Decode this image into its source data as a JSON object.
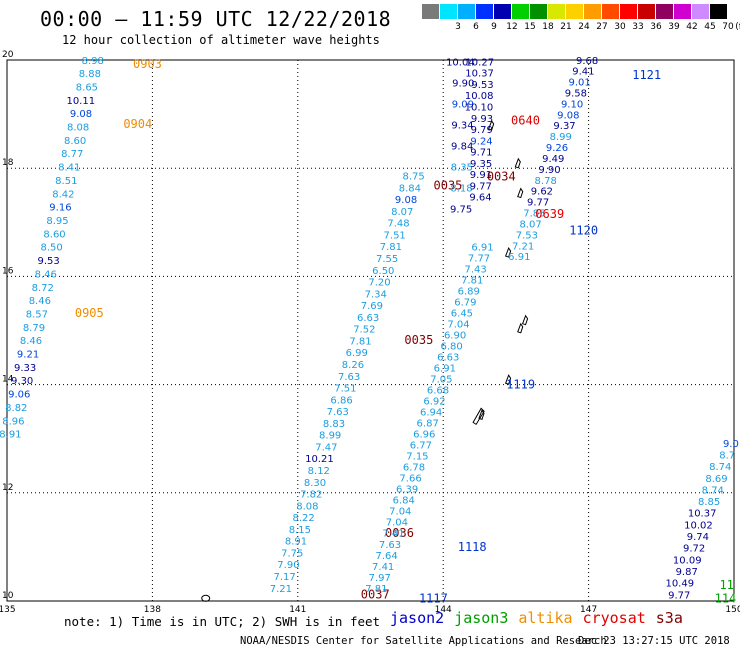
{
  "header": {
    "title": "00:00 – 11:59 UTC 12/22/2018",
    "subtitle": "12 hour collection of altimeter wave heights"
  },
  "legend": {
    "unit": "(ft)",
    "bins": [
      {
        "label": "",
        "color": "#7a7a7a"
      },
      {
        "label": "3",
        "color": "#00e5ff"
      },
      {
        "label": "6",
        "color": "#00b0ff"
      },
      {
        "label": "9",
        "color": "#0030ff"
      },
      {
        "label": "12",
        "color": "#0000b0"
      },
      {
        "label": "15",
        "color": "#00d000"
      },
      {
        "label": "18",
        "color": "#009000"
      },
      {
        "label": "21",
        "color": "#d8e800"
      },
      {
        "label": "24",
        "color": "#ffd000"
      },
      {
        "label": "27",
        "color": "#ff9c00"
      },
      {
        "label": "30",
        "color": "#ff4a00"
      },
      {
        "label": "33",
        "color": "#ff0000"
      },
      {
        "label": "36",
        "color": "#c80000"
      },
      {
        "label": "39",
        "color": "#900060"
      },
      {
        "label": "42",
        "color": "#d000d0"
      },
      {
        "label": "45",
        "color": "#d08aff"
      },
      {
        "label": "70",
        "color": "#000000"
      }
    ]
  },
  "axes": {
    "x_ticks": [
      {
        "lon": 135,
        "label": "135"
      },
      {
        "lon": 138,
        "label": "138"
      },
      {
        "lon": 141,
        "label": "141"
      },
      {
        "lon": 144,
        "label": "144"
      },
      {
        "lon": 147,
        "label": "147"
      },
      {
        "lon": 150,
        "label": "150"
      }
    ],
    "y_ticks": [
      {
        "lat": 10,
        "label": "10"
      },
      {
        "lat": 12,
        "label": "12"
      },
      {
        "lat": 14,
        "label": "14"
      },
      {
        "lat": 16,
        "label": "16"
      },
      {
        "lat": 18,
        "label": "18"
      },
      {
        "lat": 20,
        "label": "20"
      }
    ]
  },
  "colors": {
    "c_light": "#1a9ee0",
    "c_mid": "#0044dd",
    "c_dark": "#000090"
  },
  "tracks": [
    {
      "name": "track-0903",
      "time": "0903",
      "time_color": "#f08c00",
      "time_pos": {
        "lon": 137.6,
        "lat": 19.93
      },
      "start": {
        "lon": 137.0,
        "lat": 19.93
      },
      "end": {
        "lon": 135.3,
        "lat": 13.02
      },
      "values": [
        "8.98",
        "8.88",
        "8.65",
        "10.11",
        "9.08",
        "8.08",
        "8.60",
        "8.77",
        "8.41",
        "8.51",
        "8.42",
        "9.16",
        "8.95",
        "8.60",
        "8.50",
        "9.53",
        "8.46",
        "8.72",
        "8.46",
        "8.57",
        "8.79",
        "8.46",
        "9.21",
        "9.33",
        "9.30",
        "9.06",
        "8.82",
        "8.96",
        "8.91"
      ],
      "extra_times": [
        {
          "time": "0904",
          "lon": 137.4,
          "lat": 18.82,
          "color": "#f08c00"
        },
        {
          "time": "0905",
          "lon": 136.4,
          "lat": 15.32,
          "color": "#f08c00"
        }
      ]
    },
    {
      "name": "track-0035",
      "time": "0035",
      "time_color": "#800000",
      "time_pos": {
        "lon": 143.8,
        "lat": 17.68
      },
      "start": {
        "lon": 143.62,
        "lat": 17.79
      },
      "end": {
        "lon": 140.88,
        "lat": 10.17
      },
      "values": [
        "8.75",
        "8.84",
        "9.08",
        "8.07",
        "7.48",
        "7.51",
        "7.81",
        "7.55",
        "6.50",
        "7.20",
        "7.34",
        "7.69",
        "6.63",
        "7.52",
        "7.81",
        "6.99",
        "8.26",
        "7.63",
        "7.51",
        "6.86",
        "7.63",
        "8.83",
        "8.99",
        "7.47",
        "10.21",
        "8.12",
        "8.30",
        "7.82",
        "8.08",
        "8.22",
        "8.15",
        "8.91",
        "7.75",
        "7.90",
        "7.17",
        "7.21"
      ],
      "extra_times": [
        {
          "time": "0035",
          "lon": 143.2,
          "lat": 14.82,
          "color": "#800000"
        },
        {
          "time": "0036",
          "lon": 142.8,
          "lat": 11.26,
          "color": "#800000"
        },
        {
          "time": "0037",
          "lon": 142.3,
          "lat": 10.12,
          "color": "#800000"
        }
      ]
    },
    {
      "name": "track-1119",
      "time": "1119",
      "time_color": "#0033cc",
      "time_pos": {
        "lon": 145.3,
        "lat": 14.0
      },
      "start": {
        "lon": 145.04,
        "lat": 16.48
      },
      "end": {
        "lon": 142.85,
        "lat": 10.17
      },
      "values": [
        "6.91",
        "7.77",
        "7.43",
        "7.81",
        "6.89",
        "6.79",
        "6.45",
        "7.04",
        "6.90",
        "6.80",
        "6.63",
        "6.91",
        "7.05",
        "6.68",
        "6.92",
        "6.94",
        "6.87",
        "6.96",
        "6.77",
        "7.15",
        "6.78",
        "7.66",
        "6.39",
        "6.84",
        "7.04",
        "7.04",
        "7.41",
        "7.63",
        "7.64",
        "7.41",
        "7.97",
        "7.81"
      ],
      "extra_times": [
        {
          "time": "1118",
          "lon": 144.3,
          "lat": 11.0,
          "color": "#0033cc"
        },
        {
          "time": "1117",
          "lon": 143.5,
          "lat": 10.05,
          "color": "#0033cc"
        }
      ]
    },
    {
      "name": "track-1121",
      "time": "1121",
      "time_color": "#0033cc",
      "time_pos": {
        "lon": 147.9,
        "lat": 19.72
      },
      "start": {
        "lon": 147.2,
        "lat": 19.93
      },
      "end": {
        "lon": 145.8,
        "lat": 16.3
      },
      "values": [
        "9.68",
        "9.41",
        "9.01",
        "9.58",
        "9.10",
        "9.08",
        "9.37",
        "8.99",
        "9.26",
        "9.49",
        "9.90",
        "8.78",
        "9.62",
        "9.77",
        "7.85",
        "8.07",
        "7.53",
        "7.21",
        "6.91"
      ],
      "extra_times": [
        {
          "time": "1120",
          "lon": 146.6,
          "lat": 16.85,
          "color": "#0033cc"
        },
        {
          "time": "0639",
          "lon": 145.9,
          "lat": 17.15,
          "color": "#e00000"
        },
        {
          "time": "0640",
          "lon": 145.4,
          "lat": 18.88,
          "color": "#e00000"
        }
      ]
    },
    {
      "name": "track-1004",
      "time": "",
      "time_color": "#0033cc",
      "time_pos": {
        "lon": 144.5,
        "lat": 19.9
      },
      "start": {
        "lon": 144.65,
        "lat": 19.9
      },
      "end": {
        "lon": 144.6,
        "lat": 17.18
      },
      "values": [
        "10.04",
        "9.90",
        "9.09",
        "9.34",
        "9.84",
        "8.35",
        "8.18",
        "9.75"
      ],
      "extra_times": [
        {
          "time": "0034",
          "lon": 144.9,
          "lat": 17.85,
          "color": "#800000"
        }
      ]
    },
    {
      "name": "track-1027",
      "time": "",
      "time_color": "#0033cc",
      "time_pos": {
        "lon": 145.0,
        "lat": 19.9
      },
      "start": {
        "lon": 145.05,
        "lat": 19.9
      },
      "end": {
        "lon": 145.0,
        "lat": 17.4
      },
      "values": [
        "10.27",
        "10.37",
        "9.53",
        "10.08",
        "10.10",
        "9.93",
        "9.79",
        "9.24",
        "9.71",
        "9.35",
        "9.91",
        "9.77",
        "9.64"
      ],
      "extra_times": []
    },
    {
      "name": "track-east",
      "time": "",
      "time_color": "#1a9ee0",
      "time_pos": {
        "lon": 150,
        "lat": 12.8
      },
      "start": {
        "lon": 150.1,
        "lat": 12.85
      },
      "end": {
        "lon": 149.1,
        "lat": 10.05
      },
      "values": [
        "9.0",
        "8.7",
        "8.74",
        "8.69",
        "8.74",
        "8.85",
        "10.37",
        "10.02",
        "9.74",
        "9.72",
        "10.09",
        "9.87",
        "10.49",
        "9.77"
      ],
      "extra_times": [
        {
          "time": "11",
          "lon": 149.7,
          "lat": 10.3,
          "color": "#00a000"
        },
        {
          "time": "114",
          "lon": 149.6,
          "lat": 10.05,
          "color": "#00a000"
        }
      ]
    }
  ],
  "footer": {
    "note": "note:  1) Time is in UTC;  2) SWH is in feet",
    "satellites": [
      {
        "name": "jason2",
        "color": "#0000cc"
      },
      {
        "name": "jason3",
        "color": "#00a000"
      },
      {
        "name": "altika",
        "color": "#f09000"
      },
      {
        "name": "cryosat",
        "color": "#e00000"
      },
      {
        "name": "s3a",
        "color": "#800000"
      }
    ],
    "credit": "NOAA/NESDIS Center for Satellite Applications and Research",
    "timestamp": "Dec 23 13:27:15 UTC 2018"
  }
}
